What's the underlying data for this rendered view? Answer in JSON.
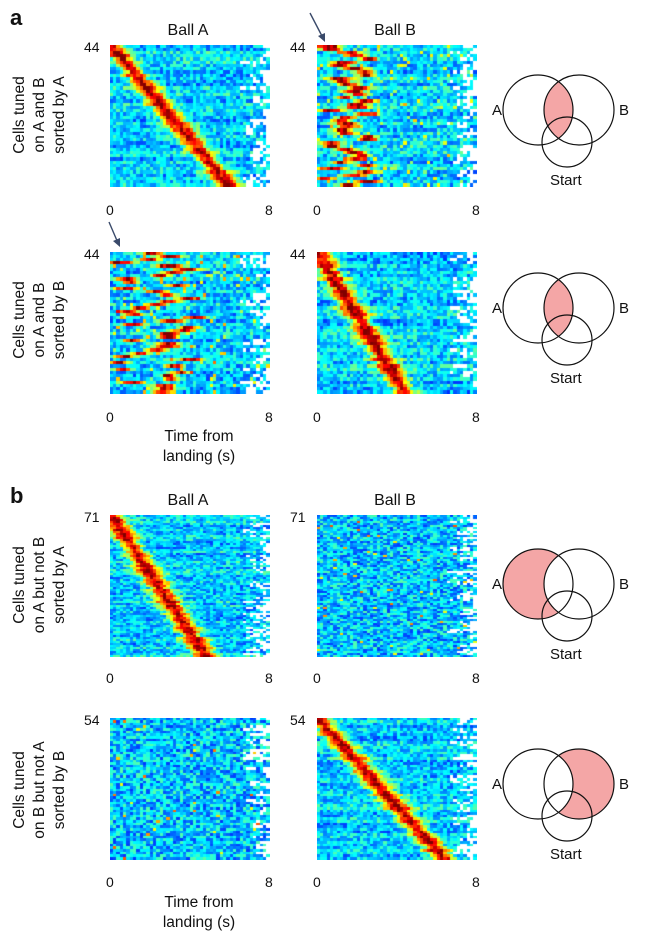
{
  "panels": [
    {
      "letter": "a",
      "col_titles": [
        "Ball A",
        "Ball B"
      ],
      "rows": [
        {
          "label": "Cells tuned\non A and B\nsorted by A",
          "ymax_label": "44",
          "x_ticks": [
            "0",
            "8"
          ],
          "arrow_on": "right",
          "venn_highlight": "A-and-B"
        },
        {
          "label": "Cells tuned\non A and B\nsorted by B",
          "ymax_label": "44",
          "x_ticks": [
            "0",
            "8"
          ],
          "arrow_on": "left",
          "venn_highlight": "A-and-B"
        }
      ],
      "xlabel": "Time from\nlanding (s)"
    },
    {
      "letter": "b",
      "col_titles": [
        "Ball A",
        "Ball B"
      ],
      "rows": [
        {
          "label": "Cells tuned\non A but not B\nsorted by A",
          "ymax_label": "71",
          "x_ticks": [
            "0",
            "8"
          ],
          "venn_highlight": "A-only"
        },
        {
          "label": "Cells tuned\non B but not A\nsorted by B",
          "ymax_label": "54",
          "x_ticks": [
            "0",
            "8"
          ],
          "venn_highlight": "B-only"
        }
      ],
      "xlabel": "Time from\nlanding (s)"
    }
  ],
  "venn": {
    "labels": {
      "a": "A",
      "b": "B",
      "start": "Start"
    },
    "highlight_color": "#f4a6a6"
  },
  "colormap": "jet",
  "chart_data": [
    {
      "type": "heatmap",
      "title": "Ball A",
      "ylabel": "Cells tuned on A and B sorted by A",
      "rows": 44,
      "xlim": [
        0,
        8
      ],
      "pattern": "diagonal",
      "peak_start_frac": 0.0,
      "peak_end_frac": 0.75
    },
    {
      "type": "heatmap",
      "title": "Ball B",
      "ylabel": "Cells tuned on A and B sorted by A",
      "rows": 44,
      "xlim": [
        0,
        8
      ],
      "pattern": "early-band",
      "peak_start_frac": 0.1,
      "peak_end_frac": 0.3
    },
    {
      "type": "heatmap",
      "title": "Ball A",
      "ylabel": "Cells tuned on A and B sorted by B",
      "rows": 44,
      "xlim": [
        0,
        8
      ],
      "pattern": "scattered",
      "peak_start_frac": 0.0,
      "peak_end_frac": 0.5
    },
    {
      "type": "heatmap",
      "title": "Ball B",
      "ylabel": "Cells tuned on A and B sorted by B",
      "rows": 44,
      "xlim": [
        0,
        8
      ],
      "pattern": "diagonal",
      "peak_start_frac": 0.0,
      "peak_end_frac": 0.55
    },
    {
      "type": "heatmap",
      "title": "Ball A",
      "ylabel": "Cells tuned on A but not B sorted by A",
      "rows": 71,
      "xlim": [
        0,
        8
      ],
      "pattern": "diagonal",
      "peak_start_frac": 0.0,
      "peak_end_frac": 0.6
    },
    {
      "type": "heatmap",
      "title": "Ball B",
      "ylabel": "Cells tuned on A but not B sorted by A",
      "rows": 71,
      "xlim": [
        0,
        8
      ],
      "pattern": "low",
      "peak_start_frac": 0.0,
      "peak_end_frac": 0.0
    },
    {
      "type": "heatmap",
      "title": "Ball A",
      "ylabel": "Cells tuned on B but not A sorted by B",
      "rows": 54,
      "xlim": [
        0,
        8
      ],
      "pattern": "low",
      "peak_start_frac": 0.0,
      "peak_end_frac": 0.0
    },
    {
      "type": "heatmap",
      "title": "Ball B",
      "ylabel": "Cells tuned on B but not A sorted by B",
      "rows": 54,
      "xlim": [
        0,
        8
      ],
      "pattern": "diagonal",
      "peak_start_frac": 0.0,
      "peak_end_frac": 0.8
    }
  ]
}
